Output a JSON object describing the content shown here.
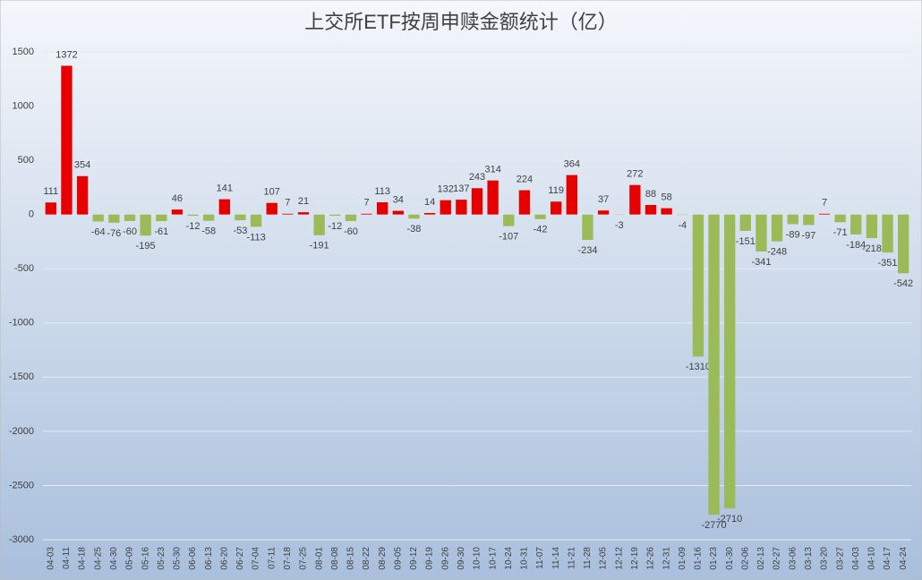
{
  "chart_data": {
    "type": "bar",
    "title": "上交所ETF按周申赎金额统计（亿）",
    "categories": [
      "04-03",
      "04-11",
      "04-18",
      "04-25",
      "04-30",
      "05-09",
      "05-16",
      "05-23",
      "05-30",
      "06-06",
      "06-13",
      "06-20",
      "06-27",
      "07-04",
      "07-11",
      "07-18",
      "07-25",
      "08-01",
      "08-08",
      "08-15",
      "08-22",
      "08-29",
      "09-05",
      "09-12",
      "09-19",
      "09-26",
      "09-30",
      "10-10",
      "10-17",
      "10-24",
      "10-31",
      "11-07",
      "11-14",
      "11-21",
      "11-28",
      "12-05",
      "12-12",
      "12-19",
      "12-26",
      "12-31",
      "01-09",
      "01-16",
      "01-23",
      "01-30",
      "02-06",
      "02-13",
      "02-27",
      "03-06",
      "03-13",
      "03-20",
      "03-27",
      "04-03",
      "04-10",
      "04-17",
      "04-24"
    ],
    "values": [
      111,
      1372,
      354,
      -64,
      -76,
      -60,
      -195,
      -61,
      46,
      -12,
      -58,
      141,
      -53,
      -113,
      107,
      7,
      21,
      -191,
      -12,
      -60,
      7,
      113,
      34,
      -38,
      14,
      132,
      137,
      243,
      314,
      -107,
      224,
      -42,
      119,
      364,
      -234,
      37,
      -3,
      272,
      88,
      58,
      -4,
      -1310,
      -2770,
      -2710,
      -151,
      -341,
      -248,
      -89,
      -97,
      7,
      -71,
      -184,
      -218,
      -351,
      -542
    ],
    "positive_color": "#e60000",
    "negative_color": "#9bbb59",
    "ylim": [
      -3000,
      1500
    ],
    "yticks": [
      -3000,
      -2500,
      -2000,
      -1500,
      -1000,
      -500,
      0,
      500,
      1000,
      1500
    ],
    "grid": true
  }
}
